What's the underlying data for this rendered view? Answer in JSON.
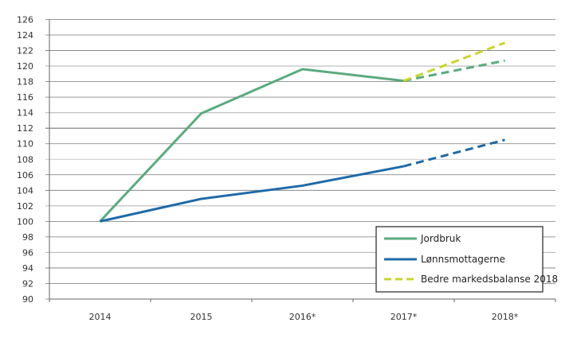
{
  "chart_data": {
    "type": "line",
    "title": "",
    "xlabel": "",
    "ylabel": "",
    "categories": [
      "2014",
      "2015",
      "2016*",
      "2017*",
      "2018*"
    ],
    "ylim": [
      90,
      126
    ],
    "yticks": [
      90,
      92,
      94,
      96,
      98,
      100,
      102,
      104,
      106,
      108,
      110,
      112,
      114,
      116,
      118,
      120,
      122,
      124,
      126
    ],
    "grid": true,
    "legend_position": "bottom-right",
    "series": [
      {
        "name": "Jordbruk",
        "color": "#5aab7d",
        "values": [
          100,
          113.9,
          119.6,
          118.1,
          120.7
        ],
        "dashed_from_index": 3
      },
      {
        "name": "Lønnsmottagerne",
        "color": "#1f6aa8",
        "values": [
          100,
          102.9,
          104.6,
          107.1,
          110.5
        ],
        "dashed_from_index": 3
      },
      {
        "name": "Bedre markedsbalanse 2018",
        "color": "#c9d62c",
        "values": [
          null,
          null,
          null,
          118.1,
          123.0
        ],
        "dashed": true
      }
    ]
  }
}
